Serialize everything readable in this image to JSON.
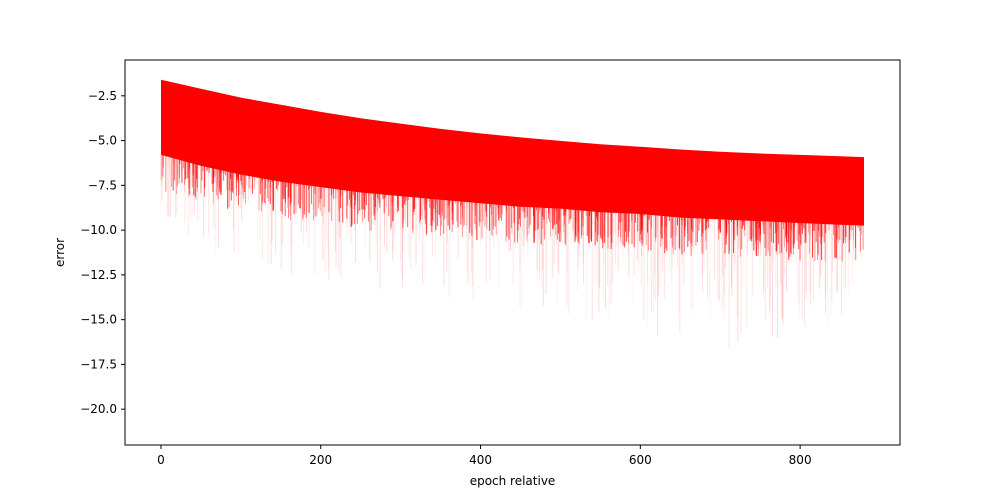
{
  "chart_data": {
    "type": "area",
    "title": "",
    "xlabel": "epoch relative",
    "ylabel": "error",
    "xlim": [
      -45,
      925
    ],
    "ylim": [
      -22,
      -0.5
    ],
    "grid": false,
    "x_ticks": [
      {
        "value": 0,
        "label": "0"
      },
      {
        "value": 200,
        "label": "200"
      },
      {
        "value": 400,
        "label": "400"
      },
      {
        "value": 600,
        "label": "600"
      },
      {
        "value": 800,
        "label": "800"
      }
    ],
    "y_ticks": [
      {
        "value": -2.5,
        "label": "−2.5"
      },
      {
        "value": -5.0,
        "label": "−5.0"
      },
      {
        "value": -7.5,
        "label": "−7.5"
      },
      {
        "value": -10.0,
        "label": "−10.0"
      },
      {
        "value": -12.5,
        "label": "−12.5"
      },
      {
        "value": -15.0,
        "label": "−15.0"
      },
      {
        "value": -17.5,
        "label": "−17.5"
      },
      {
        "value": -20.0,
        "label": "−20.0"
      }
    ],
    "series_color": "#ff0000",
    "series": [
      {
        "role": "upper-envelope",
        "x": [
          0,
          50,
          100,
          150,
          200,
          250,
          300,
          350,
          400,
          450,
          500,
          550,
          600,
          650,
          700,
          750,
          800,
          850,
          880
        ],
        "y": [
          -1.6,
          -2.1,
          -2.6,
          -3.0,
          -3.4,
          -3.75,
          -4.05,
          -4.35,
          -4.6,
          -4.82,
          -5.02,
          -5.2,
          -5.35,
          -5.5,
          -5.62,
          -5.72,
          -5.8,
          -5.88,
          -5.92
        ]
      },
      {
        "role": "dense-lower-edge",
        "x": [
          0,
          50,
          100,
          150,
          200,
          250,
          300,
          350,
          400,
          450,
          500,
          550,
          600,
          650,
          700,
          750,
          800,
          850,
          880
        ],
        "y": [
          -5.8,
          -6.4,
          -6.9,
          -7.3,
          -7.6,
          -7.9,
          -8.1,
          -8.3,
          -8.5,
          -8.7,
          -8.8,
          -9.0,
          -9.1,
          -9.3,
          -9.4,
          -9.5,
          -9.6,
          -9.7,
          -9.75
        ]
      },
      {
        "role": "sparse-lower-edge",
        "x": [
          0,
          50,
          100,
          150,
          200,
          250,
          300,
          350,
          400,
          450,
          500,
          550,
          600,
          650,
          700,
          750,
          800,
          850,
          880
        ],
        "y": [
          -9.0,
          -11.0,
          -12.0,
          -12.5,
          -13.0,
          -13.3,
          -13.5,
          -13.8,
          -14.2,
          -14.5,
          -14.8,
          -15.5,
          -16.0,
          -16.2,
          -16.8,
          -16.5,
          -16.2,
          -15.8,
          -12.5
        ]
      }
    ]
  }
}
